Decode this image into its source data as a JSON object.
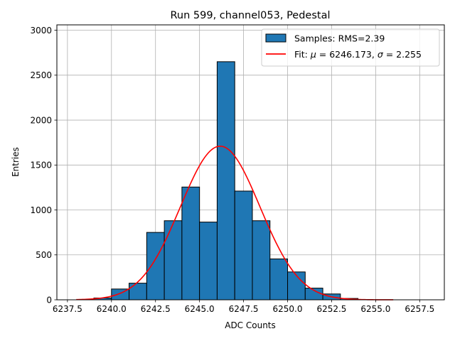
{
  "chart_data": {
    "type": "bar",
    "title": "Run 599, channel053, Pedestal",
    "xlabel": "ADC Counts",
    "ylabel": "Entries",
    "xlim": [
      6236.9,
      6258.9
    ],
    "ylim": [
      0,
      3060
    ],
    "x_ticks": [
      6237.5,
      6240.0,
      6242.5,
      6245.0,
      6247.5,
      6250.0,
      6252.5,
      6255.0,
      6257.5
    ],
    "x_tick_labels": [
      "6237.5",
      "6240.0",
      "6242.5",
      "6245.0",
      "6247.5",
      "6250.0",
      "6252.5",
      "6255.0",
      "6257.5"
    ],
    "y_ticks": [
      0,
      500,
      1000,
      1500,
      2000,
      2500,
      3000
    ],
    "y_tick_labels": [
      "0",
      "500",
      "1000",
      "1500",
      "2000",
      "2500",
      "3000"
    ],
    "grid": true,
    "legend_position": "top-right",
    "histogram": {
      "name": "Samples: RMS=2.39",
      "color": "#1f77b4",
      "edge_color": "#000000",
      "bin_edges": [
        6239,
        6240,
        6241,
        6242,
        6243,
        6244,
        6245,
        6246,
        6247,
        6248,
        6249,
        6250,
        6251,
        6252,
        6253,
        6254
      ],
      "values": [
        20,
        120,
        185,
        750,
        880,
        1255,
        865,
        2650,
        1210,
        880,
        455,
        310,
        130,
        65,
        15
      ]
    },
    "fit": {
      "name_prefix": "Fit: ",
      "mu_symbol": "μ",
      "mu_text": " = 6246.173, ",
      "sigma_symbol": "σ",
      "sigma_text": " = 2.255",
      "color": "#ff0000",
      "mu": 6246.173,
      "sigma": 2.255,
      "amplitude": 1710,
      "x_range": [
        6238,
        6256
      ]
    }
  }
}
